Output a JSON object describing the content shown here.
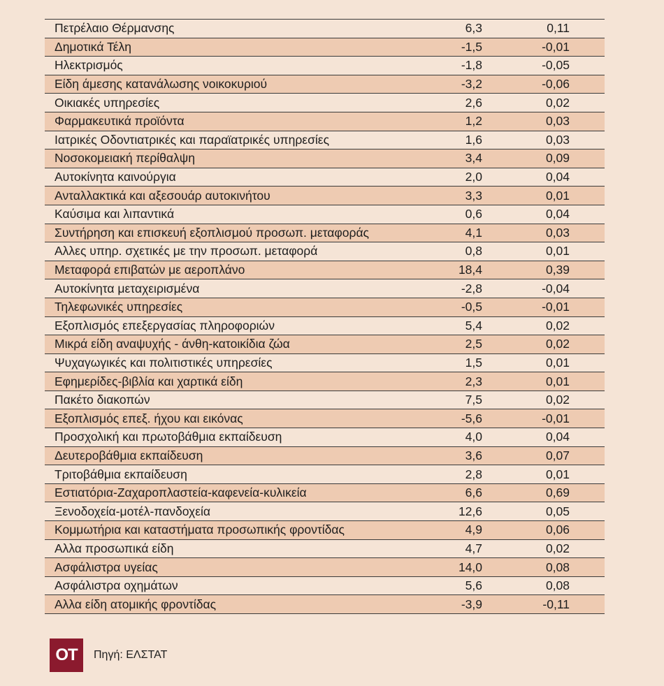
{
  "table": {
    "rows": [
      {
        "name": "Πετρέλαιο Θέρμανσης",
        "v1": "6,3",
        "v2": "0,11"
      },
      {
        "name": "Δημοτικά Τέλη",
        "v1": "-1,5",
        "v2": "-0,01"
      },
      {
        "name": "Ηλεκτρισμός",
        "v1": "-1,8",
        "v2": "-0,05"
      },
      {
        "name": "Είδη άμεσης κατανάλωσης νοικοκυριού",
        "v1": "-3,2",
        "v2": "-0,06"
      },
      {
        "name": "Οικιακές υπηρεσίες",
        "v1": "2,6",
        "v2": "0,02"
      },
      {
        "name": "Φαρμακευτικά προϊόντα",
        "v1": "1,2",
        "v2": "0,03"
      },
      {
        "name": "Ιατρικές Οδοντιατρικές  και παραϊατρικές υπηρεσίες",
        "v1": "1,6",
        "v2": "0,03"
      },
      {
        "name": "Νοσοκομειακή περίθαλψη",
        "v1": "3,4",
        "v2": "0,09"
      },
      {
        "name": "Αυτοκίνητα καινούργια",
        "v1": "2,0",
        "v2": "0,04"
      },
      {
        "name": "Ανταλλακτικά και αξεσουάρ αυτοκινήτου",
        "v1": "3,3",
        "v2": "0,01"
      },
      {
        "name": "Καύσιμα και λιπαντικά",
        "v1": "0,6",
        "v2": "0,04"
      },
      {
        "name": "Συντήρηση και επισκευή εξοπλισμού προσωπ. μεταφοράς",
        "v1": "4,1",
        "v2": "0,03"
      },
      {
        "name": "Αλλες υπηρ. σχετικές με την προσωπ. μεταφορά",
        "v1": "0,8",
        "v2": "0,01"
      },
      {
        "name": "Μεταφορά επιβατών με αεροπλάνο",
        "v1": "18,4",
        "v2": "0,39"
      },
      {
        "name": "Αυτοκίνητα μεταχειρισμένα",
        "v1": "-2,8",
        "v2": "-0,04"
      },
      {
        "name": "Τηλεφωνικές υπηρεσίες",
        "v1": "-0,5",
        "v2": "-0,01"
      },
      {
        "name": "Εξοπλισμός επεξεργασίας πληροφοριών",
        "v1": "5,4",
        "v2": "0,02"
      },
      {
        "name": "Μικρά είδη αναψυχής - άνθη-κατοικίδια ζώα",
        "v1": "2,5",
        "v2": "0,02"
      },
      {
        "name": "Ψυχαγωγικές και πολιτιστικές υπηρεσίες",
        "v1": "1,5",
        "v2": "0,01"
      },
      {
        "name": "Εφημερίδες-βιβλία και χαρτικά είδη",
        "v1": "2,3",
        "v2": "0,01"
      },
      {
        "name": "Πακέτο διακοπών",
        "v1": "7,5",
        "v2": "0,02"
      },
      {
        "name": "Εξοπλισμός επεξ. ήχου και εικόνας",
        "v1": "-5,6",
        "v2": "-0,01"
      },
      {
        "name": "Προσχολική και πρωτοβάθμια εκπαίδευση",
        "v1": "4,0",
        "v2": "0,04"
      },
      {
        "name": "Δευτεροβάθμια εκπαίδευση",
        "v1": "3,6",
        "v2": "0,07"
      },
      {
        "name": "Τριτοβάθμια εκπαίδευση",
        "v1": "2,8",
        "v2": "0,01"
      },
      {
        "name": "Εστιατόρια-Ζαχαροπλαστεία-καφενεία-κυλικεία",
        "v1": "6,6",
        "v2": "0,69"
      },
      {
        "name": "Ξενοδοχεία-μοτέλ-πανδοχεία",
        "v1": "12,6",
        "v2": "0,05"
      },
      {
        "name": "Κομμωτήρια και καταστήματα προσωπικής φροντίδας",
        "v1": "4,9",
        "v2": "0,06"
      },
      {
        "name": "Αλλα προσωπικά είδη",
        "v1": "4,7",
        "v2": "0,02"
      },
      {
        "name": "Ασφάλιστρα υγείας",
        "v1": "14,0",
        "v2": "0,08"
      },
      {
        "name": "Ασφάλιστρα οχημάτων",
        "v1": "5,6",
        "v2": "0,08"
      },
      {
        "name": "Αλλα είδη ατομικής φροντίδας",
        "v1": "-3,9",
        "v2": "-0,11"
      }
    ]
  },
  "footer": {
    "logo_text": "OT",
    "source": "Πηγή: ΕΛΣΤΑΤ"
  },
  "colors": {
    "background": "#f5e4d6",
    "row_shade": "#eecbb2",
    "logo_bg": "#8b1a2e"
  }
}
